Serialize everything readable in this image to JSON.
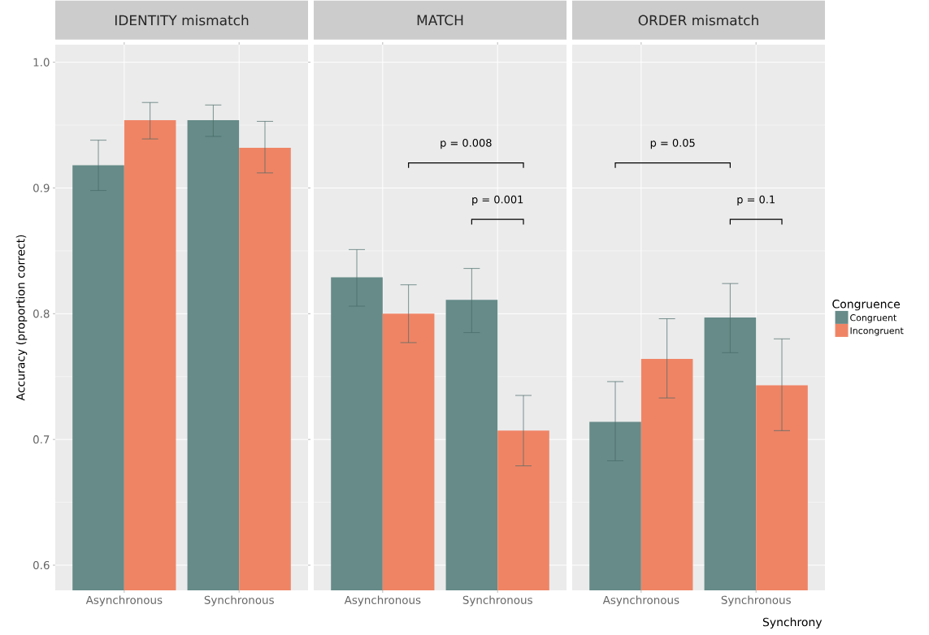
{
  "chart_data": [
    {
      "type": "bar",
      "title": "IDENTITY mismatch",
      "ylabel": "Accuracy (proportion correct)",
      "categories": [
        "Asynchronous",
        "Synchronous"
      ],
      "ylim": [
        0.58,
        1.014
      ],
      "yticks": [
        {
          "value": 0.6,
          "label": "0.6"
        },
        {
          "value": 0.7,
          "label": "0.7"
        },
        {
          "value": 0.8,
          "label": "0.8"
        },
        {
          "value": 0.9,
          "label": "0.9"
        },
        {
          "value": 1.0,
          "label": "1.0"
        }
      ],
      "grid": true,
      "series": [
        {
          "color": "#668b88",
          "values": [
            0.918,
            0.954
          ],
          "errors": [
            [
              0.898,
              0.938
            ],
            [
              0.941,
              0.966
            ]
          ]
        },
        {
          "color": "#ef8465",
          "values": [
            0.954,
            0.932
          ],
          "errors": [
            [
              0.939,
              0.968
            ],
            [
              0.912,
              0.953
            ]
          ]
        }
      ]
    },
    {
      "type": "bar",
      "title": "MATCH",
      "categories": [
        "Asynchronous",
        "Synchronous"
      ],
      "ylim": [
        0.58,
        1.014
      ],
      "yticks": [
        0.6,
        0.7,
        0.8,
        0.9,
        1.0
      ],
      "grid": true,
      "tick_labels": "x",
      "annotations": [
        "p = 0.008",
        "p = 0.001"
      ],
      "series": [
        {
          "color": "#668b88",
          "values": [
            0.829,
            0.811
          ],
          "errors": [
            [
              0.806,
              0.851
            ],
            [
              0.785,
              0.836
            ]
          ]
        },
        {
          "color": "#ef8465",
          "values": [
            0.8,
            0.707
          ],
          "errors": [
            [
              0.777,
              0.823
            ],
            [
              0.679,
              0.735
            ]
          ]
        }
      ]
    },
    {
      "type": "bar",
      "title": "ORDER mismatch",
      "xlabel": "Synchrony",
      "legend_title": "Congruence",
      "legend": "right",
      "categories": [
        "Asynchronous",
        "Synchronous"
      ],
      "ylim": [
        0.58,
        1.014
      ],
      "yticks": [
        0.6,
        0.7,
        0.8,
        0.9,
        1.0
      ],
      "grid": true,
      "tick_labels": "x",
      "annotations": [
        "p = 0.05",
        "p = 0.1"
      ],
      "series": [
        {
          "name": "Congruent",
          "color": "#668b88",
          "values": [
            0.714,
            0.797
          ],
          "errors": [
            [
              0.683,
              0.746
            ],
            [
              0.769,
              0.824
            ]
          ]
        },
        {
          "name": "Incongruent",
          "color": "#ef8465",
          "values": [
            0.764,
            0.743
          ],
          "errors": [
            [
              0.733,
              0.796
            ],
            [
              0.707,
              0.78
            ]
          ]
        }
      ]
    }
  ]
}
